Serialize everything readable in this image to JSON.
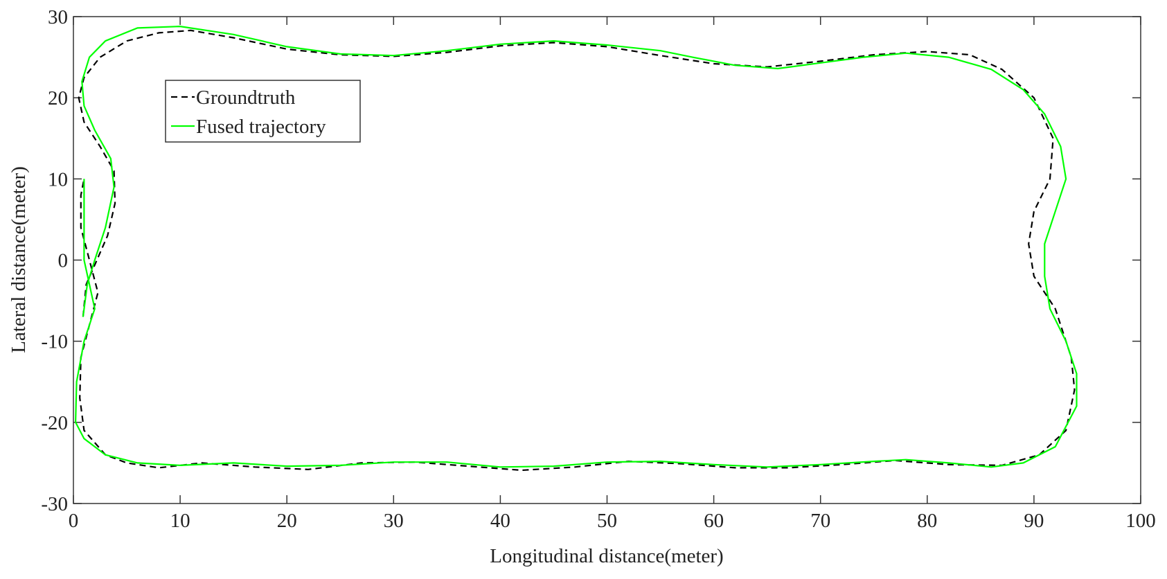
{
  "chart_data": {
    "type": "line",
    "xlabel": "Longitudinal distance(meter)",
    "ylabel": "Lateral distance(meter)",
    "xlim": [
      0,
      100
    ],
    "xticks": [
      0,
      10,
      20,
      30,
      40,
      50,
      60,
      70,
      80,
      90,
      100
    ],
    "ylim": [
      -30,
      30
    ],
    "yticks": [
      -30,
      -20,
      -10,
      0,
      10,
      20,
      30
    ],
    "legend": "upper-left",
    "series": [
      {
        "name": "Groundtruth",
        "color": "#000000",
        "dash": true,
        "x": [
          0.9,
          1.2,
          2.2,
          3.2,
          3.9,
          3.8,
          2.5,
          1,
          0.5,
          1,
          2.5,
          5,
          8,
          11,
          15,
          20,
          25,
          30,
          35,
          40,
          45,
          50,
          55,
          60,
          65,
          70,
          75,
          80,
          84,
          87,
          90,
          91.8,
          91.5,
          90,
          89.5,
          90,
          92,
          93.5,
          93.8,
          93,
          90.5,
          87,
          82,
          77,
          72,
          67,
          62,
          57,
          52,
          47,
          42,
          37,
          32,
          27,
          22,
          17,
          12,
          8,
          5,
          3,
          1,
          0.6,
          0.7,
          1.5,
          2.3,
          1.5,
          0.7,
          0.7,
          1
        ],
        "values": [
          -7,
          -3,
          0,
          3,
          7,
          11,
          14,
          17,
          20,
          22.5,
          25,
          27,
          28,
          28.3,
          27.4,
          26,
          25.3,
          25.1,
          25.6,
          26.4,
          26.8,
          26.3,
          25.2,
          24.2,
          23.8,
          24.5,
          25.3,
          25.7,
          25.3,
          23.5,
          20,
          15,
          10,
          6,
          2,
          -2,
          -6,
          -12,
          -16,
          -21,
          -24,
          -25.3,
          -25.2,
          -24.7,
          -25.2,
          -25.6,
          -25.6,
          -25.1,
          -24.8,
          -25.5,
          -25.9,
          -25.4,
          -24.9,
          -25,
          -25.8,
          -25.5,
          -25,
          -25.6,
          -25,
          -24,
          -21,
          -17,
          -12,
          -8,
          -4,
          0,
          4,
          8,
          10
        ]
      },
      {
        "name": "Fused trajectory",
        "color": "#00ff00",
        "dash": false,
        "x": [
          1,
          1,
          1.5,
          2,
          1,
          0.3,
          0.2,
          1,
          3,
          6,
          10,
          15,
          20,
          25,
          30,
          35,
          40,
          45,
          50,
          55,
          60,
          65,
          70,
          75,
          78,
          82,
          86,
          89,
          92,
          94,
          94,
          93,
          91.5,
          91,
          91,
          92,
          93,
          92.5,
          91,
          89,
          86,
          82,
          78,
          74,
          70,
          66,
          62,
          58,
          55,
          50,
          45,
          40,
          35,
          30,
          25,
          20,
          15,
          10,
          6,
          3,
          1.5,
          0.8,
          1,
          2,
          3.5,
          3.8,
          3,
          2,
          1.3,
          0.9
        ],
        "values": [
          10,
          0,
          -3,
          -6,
          -10,
          -15,
          -20,
          -22,
          -24,
          -25,
          -25.3,
          -25,
          -25.4,
          -25.3,
          -24.9,
          -24.9,
          -25.5,
          -25.4,
          -24.9,
          -24.8,
          -25.2,
          -25.5,
          -25.2,
          -24.8,
          -24.6,
          -25,
          -25.5,
          -25,
          -23,
          -18,
          -14,
          -10,
          -6,
          -2,
          2,
          6,
          10,
          14,
          18,
          21,
          23.5,
          25,
          25.5,
          25,
          24.3,
          23.6,
          24,
          25,
          25.8,
          26.5,
          27,
          26.6,
          25.8,
          25.2,
          25.4,
          26.3,
          27.8,
          28.8,
          28.6,
          27,
          25,
          22,
          19,
          16,
          12.5,
          9,
          4,
          0,
          -3,
          -7
        ]
      }
    ]
  }
}
